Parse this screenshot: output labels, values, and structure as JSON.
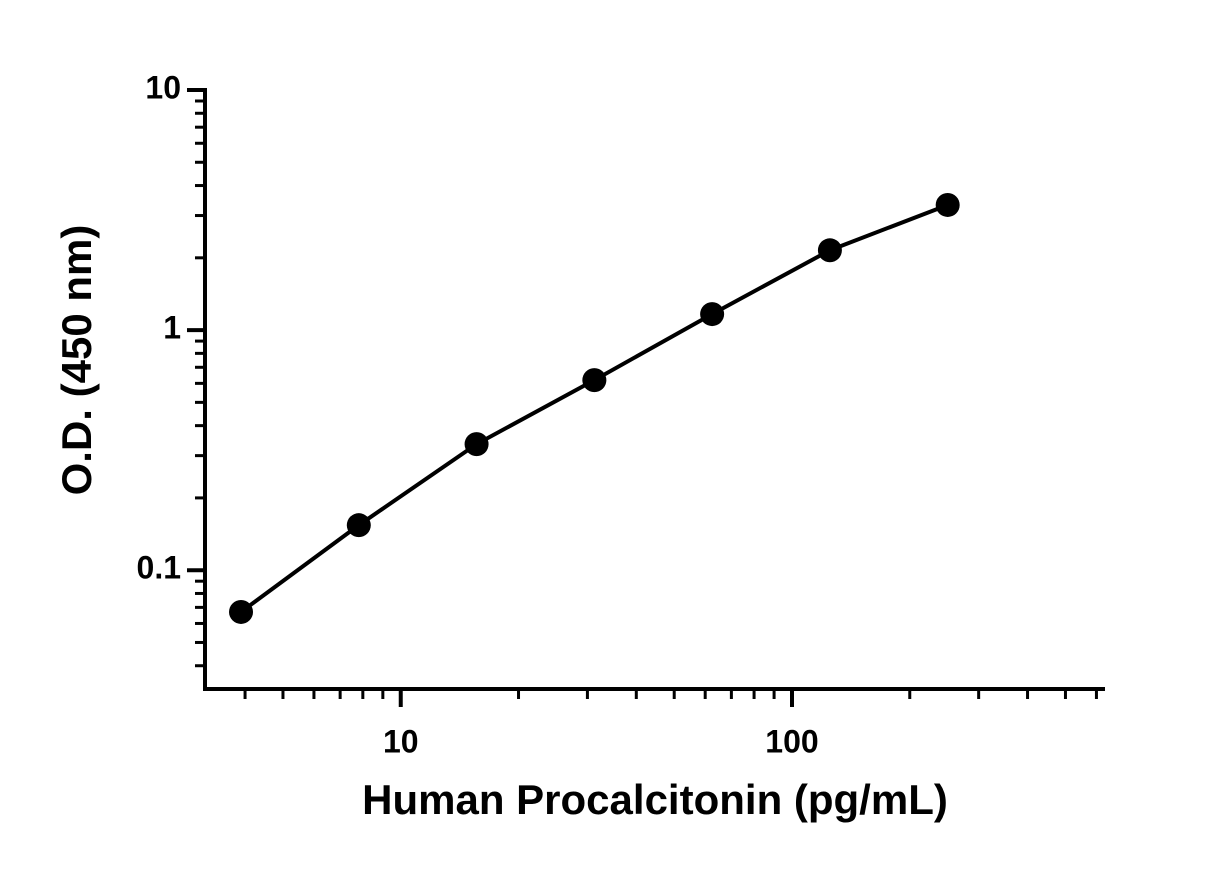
{
  "chart_data": {
    "type": "scatter",
    "x_label": "Human Procalcitonin (pg/mL)",
    "y_label": "O.D. (450 nm)",
    "series": [
      {
        "color": "#000000",
        "x": [
          3.906,
          7.8125,
          15.625,
          31.25,
          62.5,
          125,
          250
        ],
        "values": [
          0.067,
          0.154,
          0.335,
          0.619,
          1.166,
          2.15,
          3.32
        ]
      }
    ],
    "xlim": [
      3.16,
      631
    ],
    "ylim": [
      0.032,
      10
    ],
    "xticks": [
      10,
      100
    ],
    "yticks": [
      0.1,
      1,
      10
    ],
    "xscale": "log",
    "yscale": "log",
    "grid": false
  }
}
